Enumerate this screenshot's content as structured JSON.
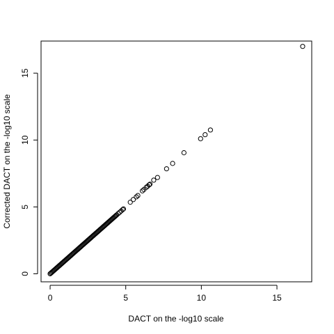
{
  "chart_data": {
    "type": "scatter",
    "title": "",
    "xlabel": "DACT on the -log10 scale",
    "ylabel": "Corrected DACT on the -log10 scale",
    "xlim": [
      -0.6,
      17.3
    ],
    "ylim": [
      -0.6,
      17.4
    ],
    "xticks": [
      0,
      5,
      10,
      15
    ],
    "yticks": [
      0,
      5,
      10,
      15
    ],
    "grid": false,
    "legend": "none",
    "series": [
      {
        "marker": "open-circle",
        "color": "#000000",
        "points": [
          [
            0.0,
            0.0
          ],
          [
            0.05,
            0.05
          ],
          [
            0.1,
            0.1
          ],
          [
            0.15,
            0.15
          ],
          [
            0.2,
            0.2
          ],
          [
            0.25,
            0.25
          ],
          [
            0.3,
            0.3
          ],
          [
            0.35,
            0.35
          ],
          [
            0.4,
            0.4
          ],
          [
            0.45,
            0.45
          ],
          [
            0.5,
            0.5
          ],
          [
            0.55,
            0.55
          ],
          [
            0.6,
            0.6
          ],
          [
            0.65,
            0.65
          ],
          [
            0.7,
            0.7
          ],
          [
            0.75,
            0.75
          ],
          [
            0.8,
            0.8
          ],
          [
            0.85,
            0.85
          ],
          [
            0.9,
            0.9
          ],
          [
            0.95,
            0.95
          ],
          [
            1.0,
            1.0
          ],
          [
            1.05,
            1.05
          ],
          [
            1.1,
            1.1
          ],
          [
            1.15,
            1.15
          ],
          [
            1.2,
            1.2
          ],
          [
            1.25,
            1.25
          ],
          [
            1.3,
            1.3
          ],
          [
            1.35,
            1.35
          ],
          [
            1.4,
            1.4
          ],
          [
            1.45,
            1.45
          ],
          [
            1.5,
            1.5
          ],
          [
            1.55,
            1.55
          ],
          [
            1.6,
            1.6
          ],
          [
            1.65,
            1.65
          ],
          [
            1.7,
            1.7
          ],
          [
            1.75,
            1.75
          ],
          [
            1.8,
            1.8
          ],
          [
            1.85,
            1.85
          ],
          [
            1.9,
            1.9
          ],
          [
            1.95,
            1.95
          ],
          [
            2.0,
            2.0
          ],
          [
            2.05,
            2.05
          ],
          [
            2.1,
            2.1
          ],
          [
            2.15,
            2.15
          ],
          [
            2.2,
            2.2
          ],
          [
            2.25,
            2.25
          ],
          [
            2.3,
            2.3
          ],
          [
            2.35,
            2.35
          ],
          [
            2.4,
            2.4
          ],
          [
            2.45,
            2.45
          ],
          [
            2.5,
            2.5
          ],
          [
            2.55,
            2.55
          ],
          [
            2.6,
            2.6
          ],
          [
            2.65,
            2.65
          ],
          [
            2.7,
            2.7
          ],
          [
            2.75,
            2.75
          ],
          [
            2.8,
            2.8
          ],
          [
            2.85,
            2.85
          ],
          [
            2.9,
            2.9
          ],
          [
            2.95,
            2.95
          ],
          [
            3.0,
            3.0
          ],
          [
            3.05,
            3.05
          ],
          [
            3.1,
            3.1
          ],
          [
            3.15,
            3.15
          ],
          [
            3.2,
            3.2
          ],
          [
            3.25,
            3.25
          ],
          [
            3.3,
            3.3
          ],
          [
            3.35,
            3.35
          ],
          [
            3.4,
            3.4
          ],
          [
            3.45,
            3.45
          ],
          [
            3.5,
            3.5
          ],
          [
            3.55,
            3.55
          ],
          [
            3.6,
            3.6
          ],
          [
            3.65,
            3.65
          ],
          [
            3.7,
            3.7
          ],
          [
            3.75,
            3.75
          ],
          [
            3.8,
            3.8
          ],
          [
            3.85,
            3.85
          ],
          [
            3.9,
            3.9
          ],
          [
            3.95,
            3.95
          ],
          [
            4.0,
            4.0
          ],
          [
            4.05,
            4.05
          ],
          [
            4.1,
            4.1
          ],
          [
            4.15,
            4.15
          ],
          [
            4.2,
            4.2
          ],
          [
            4.25,
            4.25
          ],
          [
            4.3,
            4.3
          ],
          [
            4.35,
            4.35
          ],
          [
            4.4,
            4.4
          ],
          [
            4.5,
            4.5
          ],
          [
            4.6,
            4.6
          ],
          [
            4.7,
            4.7
          ],
          [
            4.8,
            4.8
          ],
          [
            4.85,
            4.85
          ],
          [
            5.3,
            5.35
          ],
          [
            5.5,
            5.55
          ],
          [
            5.7,
            5.75
          ],
          [
            5.8,
            5.85
          ],
          [
            6.1,
            6.2
          ],
          [
            6.2,
            6.3
          ],
          [
            6.35,
            6.45
          ],
          [
            6.45,
            6.55
          ],
          [
            6.55,
            6.65
          ],
          [
            6.6,
            6.7
          ],
          [
            6.85,
            7.0
          ],
          [
            7.1,
            7.2
          ],
          [
            7.7,
            7.85
          ],
          [
            8.1,
            8.25
          ],
          [
            8.85,
            9.05
          ],
          [
            9.95,
            10.1
          ],
          [
            10.25,
            10.4
          ],
          [
            10.6,
            10.75
          ],
          [
            16.7,
            17.0
          ]
        ]
      }
    ]
  }
}
